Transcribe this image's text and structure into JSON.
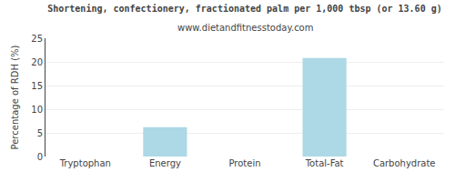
{
  "chart_data": {
    "type": "bar",
    "title": "Shortening, confectionery, fractionated palm per 1,000 tbsp (or 13.60 g)",
    "subtitle": "www.dietandfitnesstoday.com",
    "categories": [
      "Tryptophan",
      "Energy",
      "Protein",
      "Total-Fat",
      "Carbohydrate"
    ],
    "values": [
      0,
      6.2,
      0,
      20.8,
      0
    ],
    "color": "#add8e6",
    "ylabel": "Percentage of RDH (%)",
    "ylim": [
      0,
      25
    ],
    "yticks": [
      0,
      5,
      10,
      15,
      20,
      25
    ],
    "grid": true
  }
}
